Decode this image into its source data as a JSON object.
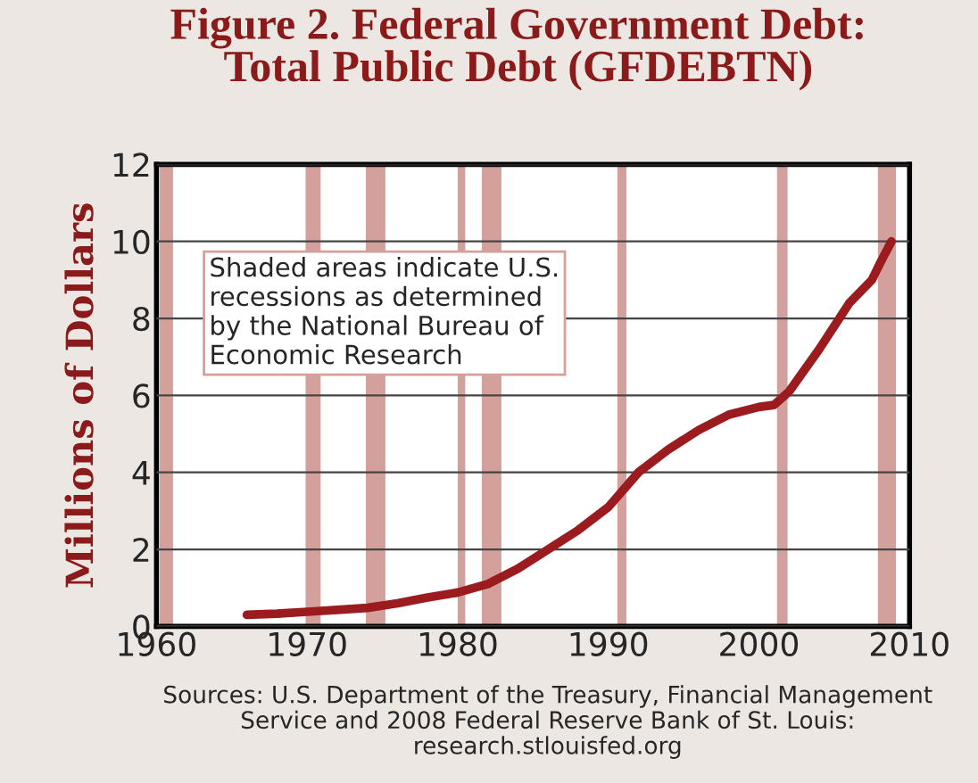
{
  "chart_data": {
    "type": "line",
    "title": "Figure 2. Federal Government Debt:\nTotal Public Debt (GFDEBTN)",
    "ylabel": "Millions of Dollars",
    "x": [
      1966,
      1968,
      1970,
      1972,
      1974,
      1976,
      1978,
      1980,
      1982,
      1984,
      1986,
      1988,
      1990,
      1992,
      1994,
      1996,
      1998,
      2000,
      2001,
      2002,
      2004,
      2006,
      2007.5,
      2008,
      2008.8
    ],
    "series": [
      {
        "color": "#9b1b1f",
        "values": [
          0.3,
          0.33,
          0.38,
          0.43,
          0.48,
          0.6,
          0.75,
          0.88,
          1.1,
          1.5,
          2.0,
          2.5,
          3.1,
          4.0,
          4.6,
          5.1,
          5.5,
          5.7,
          5.75,
          6.1,
          7.2,
          8.4,
          9.0,
          9.4,
          10.0
        ]
      }
    ],
    "xlim": [
      1960,
      2010
    ],
    "xticks": [
      1960,
      1970,
      1980,
      1990,
      2000,
      2010
    ],
    "ylim": [
      0,
      12
    ],
    "yticks": [
      0,
      2,
      4,
      6,
      8,
      10,
      12
    ],
    "grid": "y",
    "line_style": "solid",
    "marker": "none",
    "bands": [
      {
        "axis": "x",
        "from": 1960.2,
        "to": 1961.1,
        "color": "#d4a09c"
      },
      {
        "axis": "x",
        "from": 1969.9,
        "to": 1970.9,
        "color": "#d4a09c"
      },
      {
        "axis": "x",
        "from": 1973.9,
        "to": 1975.2,
        "color": "#d4a09c"
      },
      {
        "axis": "x",
        "from": 1980.0,
        "to": 1980.5,
        "color": "#d4a09c"
      },
      {
        "axis": "x",
        "from": 1981.6,
        "to": 1982.9,
        "color": "#d4a09c"
      },
      {
        "axis": "x",
        "from": 1990.6,
        "to": 1991.2,
        "color": "#d4a09c"
      },
      {
        "axis": "x",
        "from": 2001.2,
        "to": 2001.9,
        "color": "#d4a09c"
      },
      {
        "axis": "x",
        "from": 2007.9,
        "to": 2009.1,
        "color": "#d4a09c"
      }
    ],
    "annotations": [
      "Shaded areas indicate U.S.\nrecessions as determined\nby the National Bureau of\nEconomic Research",
      "Sources: U.S. Department of the Treasury, Financial Management\nService and 2008 Federal Reserve Bank of St. Louis:\nresearch.stlouisfed.org"
    ]
  }
}
